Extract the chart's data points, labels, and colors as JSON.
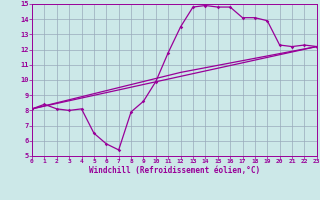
{
  "xlabel": "Windchill (Refroidissement éolien,°C)",
  "xlim": [
    0,
    23
  ],
  "ylim": [
    5,
    15
  ],
  "xticks": [
    0,
    1,
    2,
    3,
    4,
    5,
    6,
    7,
    8,
    9,
    10,
    11,
    12,
    13,
    14,
    15,
    16,
    17,
    18,
    19,
    20,
    21,
    22,
    23
  ],
  "yticks": [
    5,
    6,
    7,
    8,
    9,
    10,
    11,
    12,
    13,
    14,
    15
  ],
  "bg_color": "#cce8e8",
  "line_color": "#990099",
  "grid_color": "#99aabb",
  "series1_x": [
    0,
    1,
    2,
    3,
    4,
    5,
    6,
    7,
    8,
    9,
    10,
    11,
    12,
    13,
    14,
    15,
    16,
    17,
    18,
    19,
    20,
    21,
    22,
    23
  ],
  "series1_y": [
    8.1,
    8.4,
    8.1,
    8.0,
    8.1,
    6.5,
    5.8,
    5.4,
    7.9,
    8.6,
    9.9,
    11.8,
    13.5,
    14.8,
    14.9,
    14.8,
    14.8,
    14.1,
    14.1,
    13.9,
    12.3,
    12.2,
    12.3,
    12.2
  ],
  "series2_x": [
    0,
    23
  ],
  "series2_y": [
    8.1,
    12.2
  ],
  "series3_x": [
    0,
    12,
    23
  ],
  "series3_y": [
    8.1,
    10.5,
    12.2
  ]
}
